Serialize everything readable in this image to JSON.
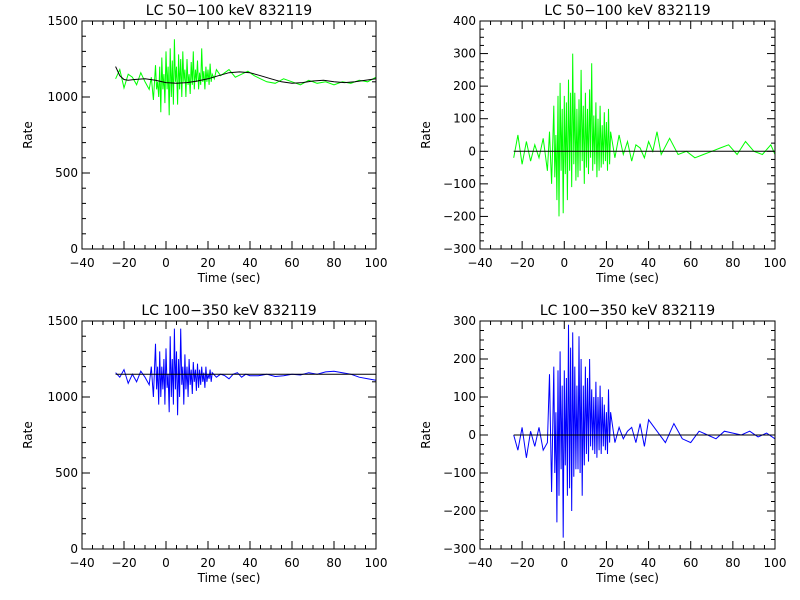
{
  "chart_data": [
    {
      "type": "line",
      "title": "LC 50−100 keV  832119",
      "xlabel": "Time (sec)",
      "ylabel": "Rate",
      "xlim": [
        -40,
        100
      ],
      "ylim": [
        0,
        1500
      ],
      "xticks": [
        -40,
        -20,
        0,
        20,
        40,
        60,
        80,
        100
      ],
      "xtick_labels": [
        "−40",
        "−20",
        "0",
        "20",
        "40",
        "60",
        "80",
        "100"
      ],
      "yticks": [
        0,
        500,
        1000,
        1500
      ],
      "ytick_labels": [
        "0",
        "500",
        "1000",
        "1500"
      ],
      "series": [
        {
          "color": "#00ff00",
          "x": [
            -24,
            -22,
            -20,
            -18,
            -16,
            -14,
            -12,
            -10,
            -8,
            -7,
            -6,
            -5,
            -4.5,
            -4,
            -3.5,
            -3,
            -2.5,
            -2,
            -1.5,
            -1,
            -0.5,
            0,
            0.5,
            1,
            1.5,
            2,
            2.5,
            3,
            3.5,
            4,
            4.5,
            5,
            5.5,
            6,
            6.5,
            7,
            7.5,
            8,
            8.5,
            9,
            9.5,
            10,
            10.5,
            11,
            11.5,
            12,
            12.5,
            13,
            13.5,
            14,
            14.5,
            15,
            15.5,
            16,
            16.5,
            17,
            17.5,
            18,
            18.5,
            19,
            19.5,
            20,
            20.5,
            21,
            21.5,
            22,
            23,
            24,
            26,
            28,
            30,
            33,
            36,
            39,
            42,
            45,
            48,
            52,
            56,
            60,
            64,
            68,
            72,
            76,
            80,
            84,
            88,
            92,
            96,
            100
          ],
          "y": [
            1120,
            1180,
            1060,
            1150,
            1130,
            1080,
            1160,
            1100,
            1050,
            1130,
            980,
            1210,
            1050,
            1100,
            1000,
            1200,
            900,
            1260,
            1050,
            1150,
            960,
            1300,
            1050,
            1200,
            880,
            1320,
            1000,
            1240,
            950,
            1380,
            1100,
            1200,
            950,
            1280,
            1050,
            1250,
            1000,
            1300,
            1100,
            1180,
            1000,
            1250,
            1080,
            1150,
            1020,
            1230,
            1080,
            1300,
            1050,
            1180,
            1100,
            1240,
            1050,
            1160,
            1080,
            1320,
            1100,
            1170,
            1050,
            1200,
            1100,
            1180,
            1080,
            1220,
            1100,
            1150,
            1120,
            1180,
            1140,
            1160,
            1180,
            1130,
            1150,
            1170,
            1140,
            1120,
            1100,
            1090,
            1120,
            1100,
            1080,
            1110,
            1090,
            1100,
            1080,
            1100,
            1090,
            1110,
            1100,
            1130
          ]
        },
        {
          "color": "#000000",
          "x": [
            -24,
            -22,
            -20,
            -18,
            -15,
            -10,
            -5,
            0,
            5,
            10,
            15,
            20,
            25,
            30,
            35,
            40,
            45,
            50,
            55,
            60,
            65,
            70,
            75,
            80,
            85,
            90,
            95,
            100
          ],
          "y": [
            1200,
            1140,
            1115,
            1110,
            1115,
            1120,
            1110,
            1095,
            1090,
            1095,
            1105,
            1120,
            1140,
            1160,
            1165,
            1160,
            1140,
            1120,
            1100,
            1090,
            1095,
            1105,
            1110,
            1100,
            1095,
            1100,
            1110,
            1120
          ]
        }
      ]
    },
    {
      "type": "line",
      "title": "LC 50−100 keV  832119",
      "xlabel": "Time (sec)",
      "ylabel": "Rate",
      "xlim": [
        -40,
        100
      ],
      "ylim": [
        -300,
        400
      ],
      "xticks": [
        -40,
        -20,
        0,
        20,
        40,
        60,
        80,
        100
      ],
      "xtick_labels": [
        "−40",
        "−20",
        "0",
        "20",
        "40",
        "60",
        "80",
        "100"
      ],
      "yticks": [
        -300,
        -200,
        -100,
        0,
        100,
        200,
        300,
        400
      ],
      "ytick_labels": [
        "−300",
        "−200",
        "−100",
        "0",
        "100",
        "200",
        "300",
        "400"
      ],
      "series": [
        {
          "color": "#00ff00",
          "x": [
            -24,
            -22,
            -20,
            -18,
            -16,
            -14,
            -12,
            -10,
            -8,
            -7,
            -6,
            -5,
            -4.5,
            -4,
            -3.5,
            -3,
            -2.5,
            -2,
            -1.5,
            -1,
            -0.5,
            0,
            0.5,
            1,
            1.5,
            2,
            2.5,
            3,
            3.5,
            4,
            4.5,
            5,
            5.5,
            6,
            6.5,
            7,
            7.5,
            8,
            8.5,
            9,
            9.5,
            10,
            10.5,
            11,
            11.5,
            12,
            12.5,
            13,
            13.5,
            14,
            14.5,
            15,
            15.5,
            16,
            16.5,
            17,
            17.5,
            18,
            18.5,
            19,
            19.5,
            20,
            20.5,
            21,
            21.5,
            22,
            24,
            26,
            28,
            30,
            32,
            34,
            36,
            38,
            40,
            42,
            44,
            46,
            50,
            54,
            58,
            62,
            66,
            70,
            74,
            78,
            82,
            86,
            90,
            94,
            98,
            100
          ],
          "y": [
            -20,
            50,
            -40,
            30,
            -30,
            20,
            -20,
            40,
            -60,
            60,
            -100,
            140,
            -80,
            50,
            -150,
            170,
            -200,
            210,
            -60,
            130,
            -190,
            170,
            -70,
            150,
            -150,
            220,
            -60,
            180,
            -110,
            300,
            -40,
            180,
            -90,
            130,
            -80,
            160,
            -60,
            250,
            -30,
            140,
            -100,
            180,
            -50,
            130,
            -70,
            190,
            -20,
            270,
            -60,
            110,
            -40,
            150,
            -80,
            100,
            -60,
            140,
            -50,
            80,
            -40,
            120,
            -30,
            90,
            -60,
            130,
            -40,
            60,
            -20,
            50,
            -10,
            30,
            -30,
            20,
            10,
            -20,
            30,
            0,
            60,
            -10,
            40,
            -10,
            0,
            -20,
            -10,
            0,
            10,
            20,
            -10,
            30,
            0,
            -10,
            20,
            -10
          ]
        },
        {
          "color": "#000000",
          "x": [
            -24,
            100
          ],
          "y": [
            0,
            0
          ]
        }
      ]
    },
    {
      "type": "line",
      "title": "LC 100−350 keV  832119",
      "xlabel": "Time (sec)",
      "ylabel": "Rate",
      "xlim": [
        -40,
        100
      ],
      "ylim": [
        0,
        1500
      ],
      "xticks": [
        -40,
        -20,
        0,
        20,
        40,
        60,
        80,
        100
      ],
      "xtick_labels": [
        "−40",
        "−20",
        "0",
        "20",
        "40",
        "60",
        "80",
        "100"
      ],
      "yticks": [
        0,
        500,
        1000,
        1500
      ],
      "ytick_labels": [
        "0",
        "500",
        "1000",
        "1500"
      ],
      "series": [
        {
          "color": "#0000ff",
          "x": [
            -24,
            -22,
            -20,
            -18,
            -16,
            -14,
            -12,
            -10,
            -8,
            -7,
            -6,
            -5,
            -4.5,
            -4,
            -3.5,
            -3,
            -2.5,
            -2,
            -1.5,
            -1,
            -0.5,
            0,
            0.5,
            1,
            1.5,
            2,
            2.5,
            3,
            3.5,
            4,
            4.5,
            5,
            5.5,
            6,
            6.5,
            7,
            7.5,
            8,
            8.5,
            9,
            9.5,
            10,
            10.5,
            11,
            11.5,
            12,
            12.5,
            13,
            13.5,
            14,
            14.5,
            15,
            15.5,
            16,
            16.5,
            17,
            17.5,
            18,
            18.5,
            19,
            19.5,
            20,
            20.5,
            21,
            21.5,
            22,
            24,
            26,
            28,
            30,
            32,
            34,
            36,
            38,
            40,
            44,
            48,
            52,
            56,
            60,
            64,
            68,
            72,
            76,
            80,
            84,
            88,
            92,
            96,
            100
          ],
          "y": [
            1160,
            1130,
            1180,
            1090,
            1150,
            1100,
            1170,
            1130,
            1080,
            1200,
            1000,
            1350,
            1050,
            1200,
            950,
            1300,
            1000,
            1200,
            1050,
            1250,
            950,
            1320,
            1060,
            1150,
            900,
            1400,
            1000,
            1250,
            950,
            1450,
            1050,
            1300,
            880,
            1250,
            1000,
            1450,
            1080,
            1200,
            950,
            1280,
            1050,
            1200,
            1000,
            1250,
            1080,
            1180,
            1020,
            1230,
            1100,
            1180,
            1040,
            1220,
            1060,
            1180,
            1080,
            1200,
            1100,
            1160,
            1060,
            1200,
            1100,
            1150,
            1120,
            1180,
            1100,
            1160,
            1130,
            1150,
            1140,
            1120,
            1150,
            1160,
            1130,
            1150,
            1140,
            1140,
            1150,
            1135,
            1140,
            1150,
            1145,
            1160,
            1150,
            1165,
            1170,
            1160,
            1150,
            1130,
            1120,
            1110
          ]
        },
        {
          "color": "#000000",
          "x": [
            -24,
            100
          ],
          "y": [
            1150,
            1150
          ]
        }
      ]
    },
    {
      "type": "line",
      "title": "LC 100−350 keV  832119",
      "xlabel": "Time (sec)",
      "ylabel": "Rate",
      "xlim": [
        -40,
        100
      ],
      "ylim": [
        -300,
        300
      ],
      "xticks": [
        -40,
        -20,
        0,
        20,
        40,
        60,
        80,
        100
      ],
      "xtick_labels": [
        "−40",
        "−20",
        "0",
        "20",
        "40",
        "60",
        "80",
        "100"
      ],
      "yticks": [
        -300,
        -200,
        -100,
        0,
        100,
        200,
        300
      ],
      "ytick_labels": [
        "−300",
        "−200",
        "−100",
        "0",
        "100",
        "200",
        "300"
      ],
      "series": [
        {
          "color": "#0000ff",
          "x": [
            -24,
            -22,
            -20,
            -18,
            -16,
            -14,
            -12,
            -10,
            -8,
            -7,
            -6,
            -5,
            -4.5,
            -4,
            -3.5,
            -3,
            -2.5,
            -2,
            -1.5,
            -1,
            -0.5,
            0,
            0.5,
            1,
            1.5,
            2,
            2.5,
            3,
            3.5,
            4,
            4.5,
            5,
            5.5,
            6,
            6.5,
            7,
            7.5,
            8,
            8.5,
            9,
            9.5,
            10,
            10.5,
            11,
            11.5,
            12,
            12.5,
            13,
            13.5,
            14,
            14.5,
            15,
            15.5,
            16,
            16.5,
            17,
            17.5,
            18,
            18.5,
            19,
            19.5,
            20,
            20.5,
            21,
            21.5,
            22,
            24,
            26,
            28,
            30,
            32,
            34,
            36,
            38,
            40,
            44,
            48,
            52,
            56,
            60,
            64,
            68,
            72,
            76,
            80,
            84,
            88,
            92,
            96,
            100
          ],
          "y": [
            0,
            -40,
            20,
            -60,
            10,
            -30,
            20,
            -40,
            -20,
            160,
            -150,
            180,
            -100,
            60,
            -230,
            170,
            -160,
            220,
            -90,
            130,
            -270,
            170,
            -80,
            150,
            -160,
            290,
            -140,
            230,
            -200,
            270,
            -110,
            180,
            -90,
            130,
            -90,
            260,
            -100,
            200,
            -160,
            130,
            -80,
            180,
            -50,
            150,
            -70,
            200,
            -30,
            120,
            -40,
            100,
            -50,
            140,
            -60,
            100,
            -40,
            130,
            -50,
            100,
            -30,
            80,
            -40,
            60,
            -50,
            120,
            -20,
            60,
            -20,
            20,
            -10,
            10,
            20,
            -20,
            30,
            -30,
            40,
            10,
            -20,
            30,
            -10,
            -20,
            10,
            0,
            -10,
            10,
            5,
            0,
            10,
            -5,
            5,
            -10
          ]
        },
        {
          "color": "#000000",
          "x": [
            -24,
            100
          ],
          "y": [
            0,
            0
          ]
        }
      ]
    }
  ]
}
